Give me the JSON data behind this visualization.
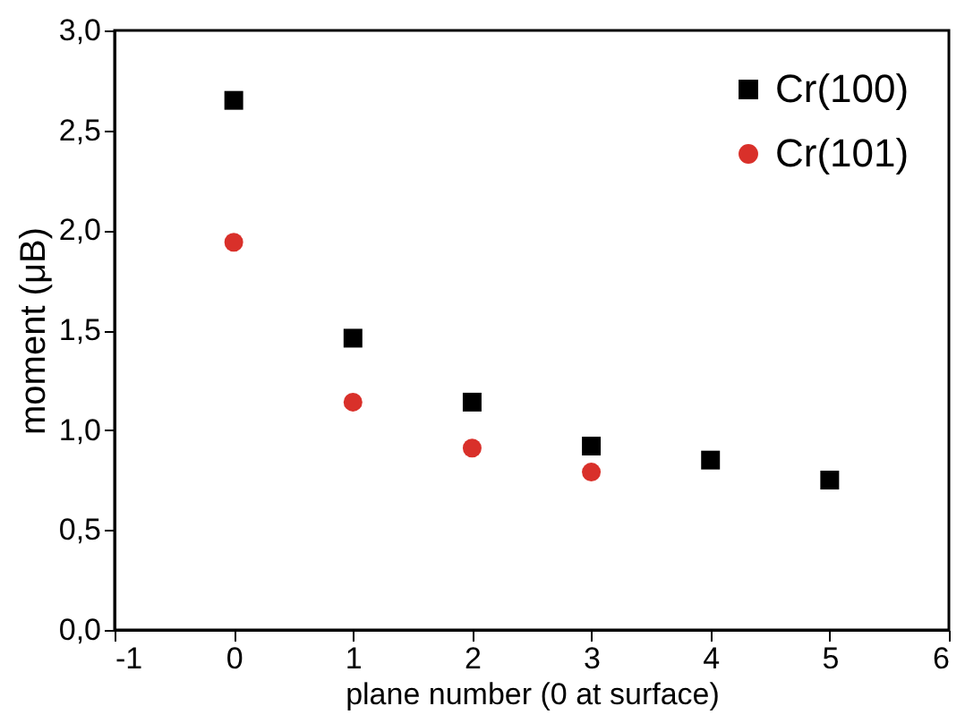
{
  "chart_data": {
    "type": "scatter",
    "xlabel": "plane number (0 at  surface)",
    "ylabel": "moment (μB)",
    "xlim": [
      -1,
      6
    ],
    "xticks": [
      -1,
      0,
      1,
      2,
      3,
      4,
      5,
      6
    ],
    "ylim": [
      0,
      3
    ],
    "yticks": [
      {
        "value": 0,
        "label": "0,0"
      },
      {
        "value": 0.5,
        "label": "0,5"
      },
      {
        "value": 1,
        "label": "1,0"
      },
      {
        "value": 1.5,
        "label": "1,5"
      },
      {
        "value": 2,
        "label": "2,0"
      },
      {
        "value": 2.5,
        "label": "2,5"
      },
      {
        "value": 3,
        "label": "3,0"
      }
    ],
    "grid": false,
    "legend": "top right",
    "series": [
      {
        "name": "Cr(100)",
        "color": "#000000",
        "marker": "square",
        "x": [
          0,
          1,
          2,
          3,
          4,
          5
        ],
        "values": [
          2.65,
          1.46,
          1.14,
          0.92,
          0.85,
          0.75
        ]
      },
      {
        "name": "Cr(101)",
        "color": "#d9302a",
        "marker": "circle",
        "x": [
          0,
          1,
          2,
          3
        ],
        "values": [
          1.94,
          1.14,
          0.91,
          0.79
        ]
      }
    ]
  }
}
